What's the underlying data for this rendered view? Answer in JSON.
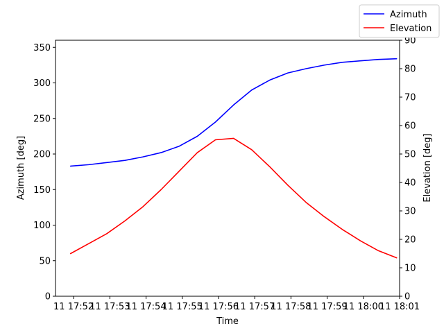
{
  "chart_data": {
    "type": "line",
    "xlabel": "Time",
    "ylabel_left": "Azimuth [deg]",
    "ylabel_right": "Elevation [deg]",
    "x_ticks": [
      "11 17:52",
      "11 17:53",
      "11 17:54",
      "11 17:55",
      "11 17:56",
      "11 17:57",
      "11 17:58",
      "11 17:59",
      "11 18:00",
      "11 18:01"
    ],
    "xlim": [
      "17:51:30",
      "18:01:00"
    ],
    "ylim_left": [
      0,
      360
    ],
    "yticks_left": [
      0,
      50,
      100,
      150,
      200,
      250,
      300,
      350
    ],
    "ylim_right": [
      0,
      90
    ],
    "yticks_right": [
      0,
      10,
      20,
      30,
      40,
      50,
      60,
      70,
      80,
      90
    ],
    "legend_position": "top-right",
    "grid": false,
    "x": [
      "17:51:55",
      "17:52:25",
      "17:52:55",
      "17:53:25",
      "17:53:55",
      "17:54:25",
      "17:54:55",
      "17:55:25",
      "17:55:55",
      "17:56:25",
      "17:56:55",
      "17:57:25",
      "17:57:55",
      "17:58:25",
      "17:58:55",
      "17:59:25",
      "17:59:55",
      "18:00:25",
      "18:00:55"
    ],
    "series": [
      {
        "name": "Azimuth",
        "axis": "left",
        "color": "#0000ff",
        "values": [
          183,
          185,
          188,
          191,
          196,
          202,
          211,
          225,
          245,
          269,
          290,
          304,
          314,
          320,
          325,
          329,
          331,
          333,
          334
        ]
      },
      {
        "name": "Elevation",
        "axis": "right",
        "color": "#ff0000",
        "values": [
          15,
          18.5,
          22,
          26.5,
          31.5,
          37.5,
          44,
          50.5,
          55,
          55.5,
          51.5,
          45.5,
          39,
          33,
          28,
          23.5,
          19.5,
          16,
          13.5
        ]
      }
    ]
  }
}
